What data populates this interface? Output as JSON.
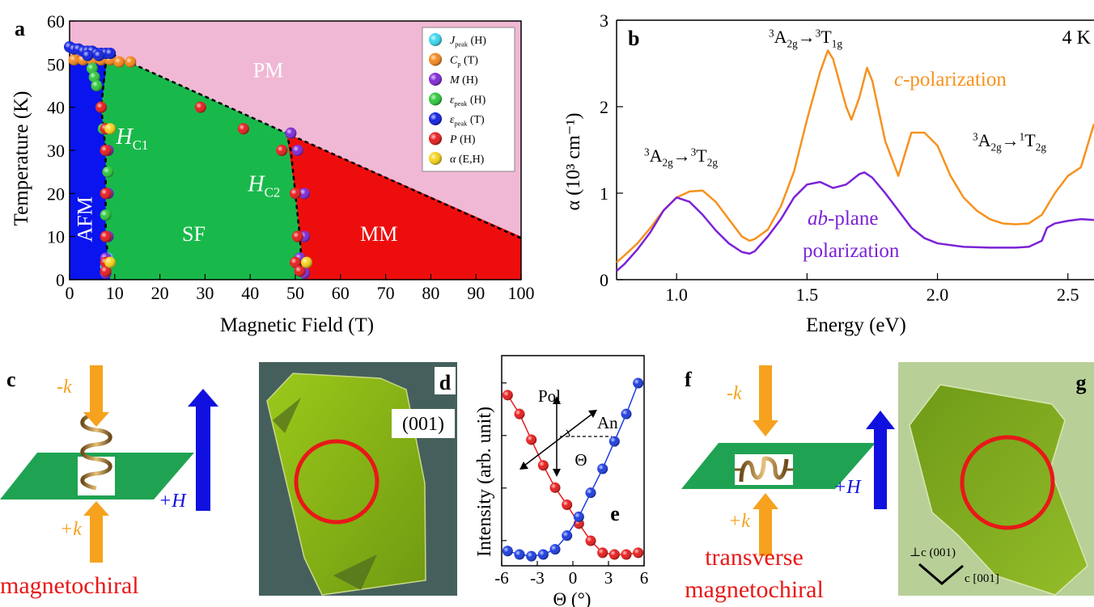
{
  "panels": {
    "a": {
      "letter": "a"
    },
    "b": {
      "letter": "b"
    },
    "c": {
      "letter": "c",
      "minus_k": "-k",
      "plus_k": "+k",
      "plus_h": "+H",
      "caption": "magnetochiral"
    },
    "d": {
      "letter": "d",
      "face": "(001)"
    },
    "e": {
      "letter": "e",
      "pol": "Pol",
      "an": "An",
      "theta": "Θ"
    },
    "f": {
      "letter": "f",
      "minus_k": "-k",
      "plus_k": "+k",
      "plus_h": "+H",
      "caption_line1": "transverse",
      "caption_line2": "magnetochiral"
    },
    "g": {
      "letter": "g",
      "axis_perp": "⊥c (001)",
      "axis_par": "c [001]"
    }
  },
  "colors": {
    "afm": "#0a14ee",
    "sf": "#18b94a",
    "mm": "#ee0d0d",
    "pm": "#f0b8d4",
    "c_pol": "#f6921e",
    "ab_pol": "#7b22d6",
    "arrow_k": "#f6a21e",
    "arrow_h": "#1010e0",
    "plate": "#1fa352",
    "circle": "#e81818",
    "crystal": "#8cbd1a"
  },
  "chart_data": [
    {
      "type": "scatter",
      "panel": "a",
      "xlabel": "Magnetic Field (T)",
      "ylabel": "Temperature (K)",
      "xlim": [
        0,
        100
      ],
      "ylim": [
        0,
        60
      ],
      "xticks": [
        0,
        10,
        20,
        30,
        40,
        50,
        60,
        70,
        80,
        90,
        100
      ],
      "yticks": [
        0,
        10,
        20,
        30,
        40,
        50,
        60
      ],
      "phase_labels": [
        "PM",
        "SF",
        "MM",
        "AFM"
      ],
      "boundary_labels": {
        "hc1": {
          "main": "H",
          "sub": "C1"
        },
        "hc2": {
          "main": "H",
          "sub": "C2"
        }
      },
      "legend_position": "top-right",
      "regions": {
        "afm": [
          [
            0,
            52
          ],
          [
            8,
            52
          ],
          [
            8,
            48
          ],
          [
            7,
            40
          ],
          [
            8,
            30
          ],
          [
            8,
            20
          ],
          [
            8,
            10
          ],
          [
            9,
            0
          ],
          [
            0,
            0
          ]
        ],
        "sf": [
          [
            8,
            52
          ],
          [
            12,
            51
          ],
          [
            48,
            34
          ],
          [
            50,
            20
          ],
          [
            51,
            10
          ],
          [
            52,
            0
          ],
          [
            9,
            0
          ],
          [
            8,
            10
          ],
          [
            8,
            20
          ],
          [
            8,
            30
          ],
          [
            7,
            40
          ],
          [
            8,
            48
          ]
        ],
        "mm": [
          [
            48,
            34
          ],
          [
            100,
            10
          ],
          [
            100,
            0
          ],
          [
            52,
            0
          ],
          [
            51,
            10
          ],
          [
            50,
            20
          ]
        ]
      },
      "dashed_line": [
        [
          8,
          53
        ],
        [
          12,
          51
        ],
        [
          48,
          34
        ],
        [
          100,
          9.6
        ]
      ],
      "dashed_hc1": [
        [
          8,
          50
        ],
        [
          7.5,
          45
        ],
        [
          7,
          40
        ],
        [
          8,
          30
        ],
        [
          8,
          20
        ],
        [
          8,
          10
        ],
        [
          9,
          1
        ]
      ],
      "dashed_hc2": [
        [
          48,
          34
        ],
        [
          49,
          30
        ],
        [
          50,
          20
        ],
        [
          51,
          10
        ],
        [
          51.5,
          2
        ]
      ],
      "series": [
        {
          "key": "jpeak",
          "name": "J",
          "sub": "peak",
          "arg": "(H)",
          "color": "#38d8ee",
          "points": [
            [
              8.5,
              5
            ],
            [
              51,
              5
            ],
            [
              8,
              3
            ]
          ]
        },
        {
          "key": "cp",
          "name": "C",
          "sub": "p",
          "arg": "(T)",
          "color": "#f6871c",
          "points": [
            [
              1,
              51
            ],
            [
              3,
              51
            ],
            [
              5,
              51
            ],
            [
              7,
              51
            ],
            [
              9,
              51
            ],
            [
              11,
              50.5
            ],
            [
              13.5,
              50.5
            ]
          ]
        },
        {
          "key": "m",
          "name": "M",
          "sub": "",
          "arg": "(H)",
          "color": "#7f28d8",
          "points": [
            [
              8,
              1.5
            ],
            [
              8,
              5
            ],
            [
              8.5,
              10
            ],
            [
              8.5,
              20
            ],
            [
              8.5,
              30
            ],
            [
              9,
              35
            ],
            [
              49,
              34
            ],
            [
              50.5,
              30
            ],
            [
              52,
              20
            ],
            [
              52,
              10
            ],
            [
              51,
              5
            ],
            [
              52,
              1.5
            ]
          ]
        },
        {
          "key": "eh",
          "name": "ε",
          "sub": "peak",
          "arg": "(H)",
          "color": "#2ec83a",
          "points": [
            [
              5,
              49
            ],
            [
              5.5,
              47
            ],
            [
              6,
              45
            ],
            [
              7,
              40
            ],
            [
              7.5,
              35
            ],
            [
              8,
              30
            ],
            [
              8.5,
              25
            ],
            [
              8,
              15
            ]
          ]
        },
        {
          "key": "et",
          "name": "ε",
          "sub": "peak",
          "arg": "(T)",
          "color": "#1020e0",
          "points": [
            [
              0,
              54
            ],
            [
              1,
              53.5
            ],
            [
              2,
              53.5
            ],
            [
              3,
              53
            ],
            [
              4,
              53
            ],
            [
              5,
              53
            ],
            [
              6,
              52.5
            ],
            [
              7,
              52.5
            ],
            [
              8,
              52.5
            ],
            [
              9,
              52.5
            ],
            [
              6.5,
              52
            ],
            [
              4,
              52
            ]
          ]
        },
        {
          "key": "ph",
          "name": "P",
          "sub": "",
          "arg": "(H)",
          "color": "#e81c1c",
          "points": [
            [
              7,
              40
            ],
            [
              8,
              35
            ],
            [
              8,
              30
            ],
            [
              8,
              20
            ],
            [
              8,
              10
            ],
            [
              8,
              4
            ],
            [
              8,
              2
            ],
            [
              29,
              40
            ],
            [
              38.5,
              35
            ],
            [
              47,
              30
            ],
            [
              50,
              20
            ],
            [
              50.5,
              10
            ],
            [
              50,
              4
            ],
            [
              51,
              2
            ]
          ]
        },
        {
          "key": "aeh",
          "name": "α",
          "sub": "",
          "arg": "(E,H)",
          "color": "#f6d21c",
          "points": [
            [
              9,
              35
            ],
            [
              9,
              4
            ],
            [
              52.5,
              4
            ]
          ]
        }
      ]
    },
    {
      "type": "line",
      "panel": "b",
      "xlabel": "Energy (eV)",
      "ylabel": "α (10³ cm⁻¹)",
      "xlim": [
        0.77,
        2.6
      ],
      "ylim": [
        0,
        3
      ],
      "xticks": [
        1.0,
        1.5,
        2.0,
        2.5
      ],
      "xtick_labels": [
        "1.0",
        "1.5",
        "2.0",
        "2.5"
      ],
      "yticks": [
        0,
        1,
        2,
        3
      ],
      "annotations": {
        "temperature": "4 K",
        "t1g": {
          "from_sup": "3",
          "from": "A",
          "from_sub": "2g",
          "to_sup": "3",
          "to": "T",
          "to_sub": "1g"
        },
        "t2g": {
          "from_sup": "3",
          "from": "A",
          "from_sub": "2g",
          "to_sup": "3",
          "to": "T",
          "to_sub": "2g"
        },
        "singlet": {
          "from_sup": "3",
          "from": "A",
          "from_sub": "2g",
          "to_sup": "1",
          "to": "T",
          "to_sub": "2g"
        },
        "c_label": {
          "italic": "c",
          "rest": "-polarization"
        },
        "ab_label": {
          "italic": "ab",
          "rest": "-plane",
          "line2": "polarization"
        }
      },
      "series": [
        {
          "key": "c",
          "color": "#f6921e",
          "x": [
            0.77,
            0.8,
            0.85,
            0.9,
            0.95,
            1.0,
            1.05,
            1.1,
            1.15,
            1.2,
            1.25,
            1.28,
            1.3,
            1.35,
            1.4,
            1.45,
            1.5,
            1.55,
            1.58,
            1.6,
            1.65,
            1.67,
            1.7,
            1.73,
            1.75,
            1.8,
            1.85,
            1.9,
            1.95,
            2.0,
            2.05,
            2.1,
            2.15,
            2.2,
            2.25,
            2.3,
            2.35,
            2.4,
            2.45,
            2.5,
            2.55,
            2.6
          ],
          "y": [
            0.2,
            0.28,
            0.42,
            0.6,
            0.8,
            0.95,
            1.02,
            1.03,
            0.9,
            0.7,
            0.5,
            0.45,
            0.47,
            0.58,
            0.85,
            1.25,
            1.85,
            2.4,
            2.65,
            2.55,
            2.0,
            1.85,
            2.1,
            2.45,
            2.3,
            1.6,
            1.2,
            1.7,
            1.7,
            1.55,
            1.2,
            0.95,
            0.8,
            0.7,
            0.65,
            0.64,
            0.65,
            0.75,
            1.0,
            1.2,
            1.3,
            1.8
          ]
        },
        {
          "key": "ab",
          "color": "#7b22d6",
          "x": [
            0.77,
            0.8,
            0.85,
            0.9,
            0.95,
            1.0,
            1.05,
            1.1,
            1.15,
            1.2,
            1.25,
            1.28,
            1.3,
            1.35,
            1.4,
            1.45,
            1.5,
            1.55,
            1.6,
            1.65,
            1.7,
            1.72,
            1.75,
            1.8,
            1.85,
            1.9,
            1.95,
            2.0,
            2.1,
            2.2,
            2.3,
            2.35,
            2.4,
            2.42,
            2.45,
            2.5,
            2.55,
            2.6
          ],
          "y": [
            0.1,
            0.18,
            0.35,
            0.55,
            0.8,
            0.95,
            0.9,
            0.75,
            0.57,
            0.42,
            0.32,
            0.3,
            0.33,
            0.5,
            0.7,
            0.95,
            1.1,
            1.13,
            1.06,
            1.1,
            1.22,
            1.24,
            1.18,
            1.0,
            0.8,
            0.6,
            0.48,
            0.42,
            0.38,
            0.37,
            0.37,
            0.38,
            0.45,
            0.6,
            0.65,
            0.68,
            0.7,
            0.69
          ]
        }
      ]
    },
    {
      "type": "scatter",
      "panel": "e",
      "xlabel": "Θ (°)",
      "ylabel": "Intensity (arb. unit)",
      "xlim": [
        -6,
        6
      ],
      "xticks": [
        -6,
        -3,
        0,
        3,
        6
      ],
      "xtick_labels": [
        "-6",
        "-3",
        "0",
        "3",
        "6"
      ],
      "series": [
        {
          "key": "red",
          "color": "#e81c1c",
          "x": [
            -5.5,
            -4.5,
            -3.5,
            -2.5,
            -1.5,
            -0.5,
            0.5,
            1.5,
            2.5,
            3.5,
            4.5,
            5.5
          ],
          "y": [
            0.93,
            0.82,
            0.67,
            0.52,
            0.39,
            0.29,
            0.18,
            0.08,
            0.01,
            0.0,
            0.0,
            0.01
          ]
        },
        {
          "key": "blue",
          "color": "#1c3ce0",
          "x": [
            -5.5,
            -4.5,
            -3.5,
            -2.5,
            -1.5,
            -0.5,
            0.5,
            1.5,
            2.5,
            3.5,
            4.5,
            5.5
          ],
          "y": [
            0.02,
            0.0,
            -0.01,
            0.0,
            0.03,
            0.11,
            0.22,
            0.36,
            0.5,
            0.66,
            0.82,
            1.0
          ]
        }
      ]
    }
  ]
}
